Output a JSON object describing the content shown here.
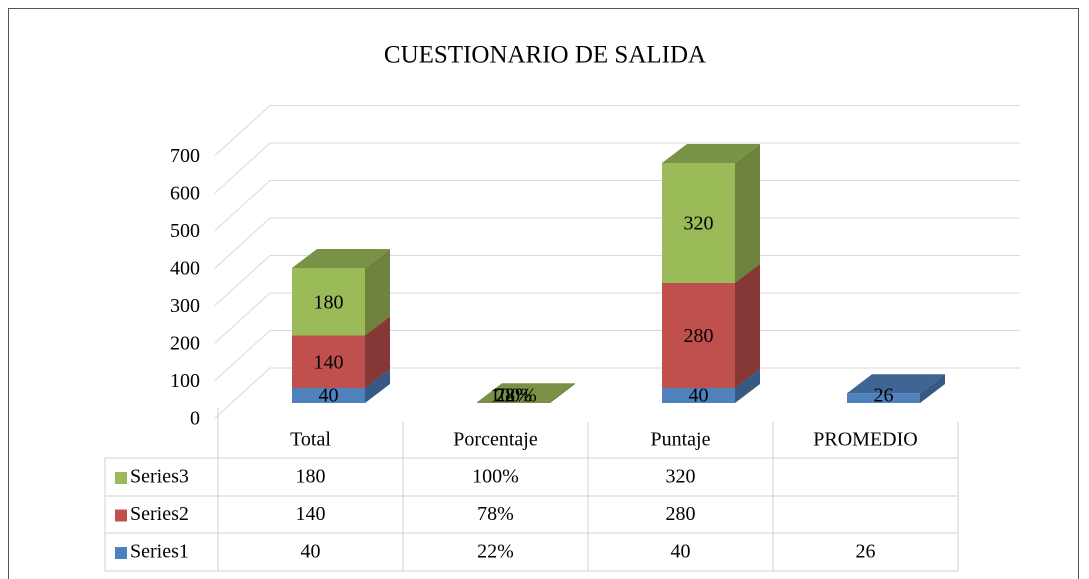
{
  "chart_data": {
    "type": "bar3d_stacked",
    "title": "CUESTIONARIO DE SALIDA",
    "categories": [
      "Total",
      "Porcentaje",
      "Puntaje",
      "PROMEDIO"
    ],
    "series": [
      {
        "name": "Series1",
        "color": "#4f81bd",
        "values": [
          40,
          0.22,
          40,
          26
        ],
        "value_labels": [
          "40",
          "22%",
          "40",
          "26"
        ]
      },
      {
        "name": "Series2",
        "color": "#c0504d",
        "values": [
          140,
          0.78,
          280,
          null
        ],
        "value_labels": [
          "140",
          "78%",
          "280",
          null
        ]
      },
      {
        "name": "Series3",
        "color": "#9bbb59",
        "values": [
          180,
          1,
          320,
          null
        ],
        "value_labels": [
          "180",
          "100%",
          "320",
          null
        ]
      }
    ],
    "ylim": [
      0,
      700
    ],
    "yticks": [
      0,
      100,
      200,
      300,
      400,
      500,
      600,
      700
    ],
    "grid": true,
    "legend": "table"
  }
}
